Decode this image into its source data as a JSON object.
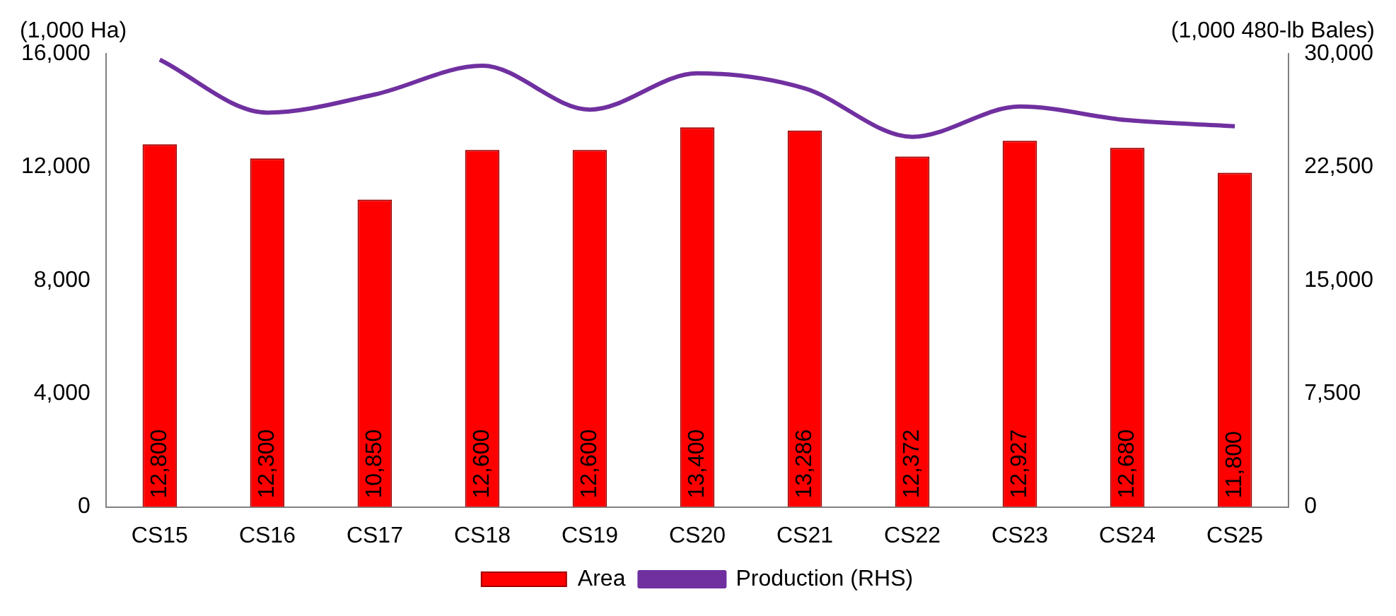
{
  "chart_data": {
    "type": "bar",
    "ylabel": "(1,000 Ha)",
    "y2label": "(1,000 480-lb Bales)",
    "categories": [
      "CS15",
      "CS16",
      "CS17",
      "CS18",
      "CS19",
      "CS20",
      "CS21",
      "CS22",
      "CS23",
      "CS24",
      "CS25"
    ],
    "series": [
      {
        "name": "Area",
        "color": "#ff0000",
        "values": [
          12800,
          12300,
          10850,
          12600,
          12600,
          13400,
          13286,
          12372,
          12927,
          12680,
          11800
        ],
        "value_labels": [
          "12,800",
          "12,300",
          "10,850",
          "12,600",
          "12,600",
          "13,400",
          "13,286",
          "12,372",
          "12,927",
          "12,680",
          "11,800"
        ]
      },
      {
        "name": "Production (RHS)",
        "type": "line",
        "axis": "y2",
        "color": "#7030a0",
        "values": [
          29600,
          26100,
          27300,
          29200,
          26300,
          28700,
          27700,
          24500,
          26500,
          25600,
          25200
        ]
      }
    ],
    "ylim": [
      0,
      16000
    ],
    "yticks": [
      0,
      {
        "value": 4000,
        "label": "4,000"
      },
      {
        "value": 8000,
        "label": "8,000"
      },
      {
        "value": 12000,
        "label": "12,000"
      },
      {
        "value": 16000,
        "label": "16,000"
      }
    ],
    "y2lim": [
      0,
      30000
    ],
    "y2ticks": [
      0,
      {
        "value": 7500,
        "label": "7,500"
      },
      {
        "value": 15000,
        "label": "15,000"
      },
      {
        "value": 22500,
        "label": "22,500"
      },
      {
        "value": 30000,
        "label": "30,000"
      }
    ],
    "legend": "bottom",
    "marker": "none"
  }
}
